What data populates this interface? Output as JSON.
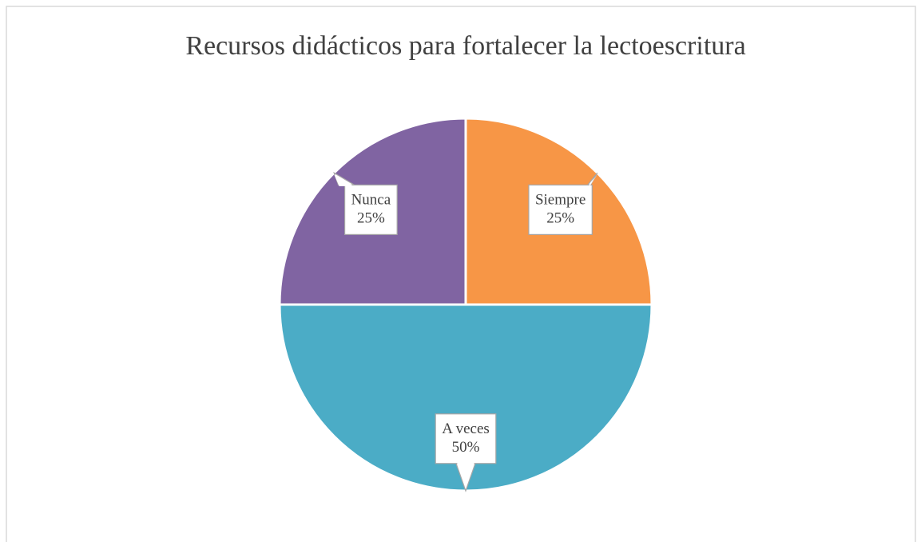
{
  "chart_data": {
    "type": "pie",
    "title": "Recursos didácticos para fortalecer la lectoescritura",
    "categories": [
      "Siempre",
      "A veces",
      "Nunca"
    ],
    "values": [
      25,
      50,
      25
    ],
    "value_labels": [
      "25%",
      "50%",
      "25%"
    ],
    "colors": [
      "#F79646",
      "#4BACC6",
      "#8064A2"
    ]
  }
}
